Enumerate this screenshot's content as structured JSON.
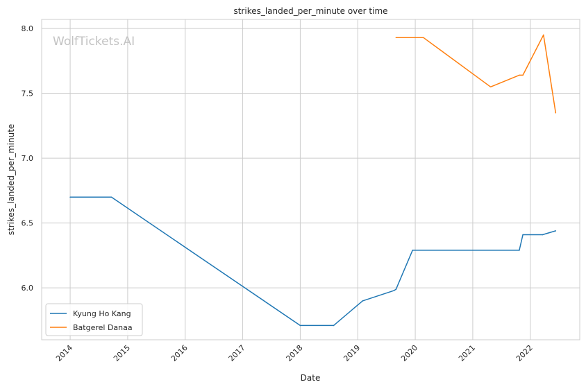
{
  "chart_data": {
    "type": "line",
    "title": "strikes_landed_per_minute over time",
    "xlabel": "Date",
    "ylabel": "strikes_landed_per_minute",
    "watermark": "WolfTickets.AI",
    "x_ticks": [
      "2014",
      "2015",
      "2016",
      "2017",
      "2018",
      "2019",
      "2020",
      "2021",
      "2022"
    ],
    "y_ticks": [
      "6.0",
      "6.5",
      "7.0",
      "7.5",
      "8.0"
    ],
    "ylim": [
      5.6,
      8.07
    ],
    "xlim": [
      "2013-07-04",
      "2022-11-11"
    ],
    "grid": true,
    "legend_position": "lower-left",
    "series": [
      {
        "name": "Kyung Ho Kang",
        "color": "#1f77b4",
        "points": [
          {
            "date": "2014-01-01",
            "value": 6.7
          },
          {
            "date": "2014-09-20",
            "value": 6.7
          },
          {
            "date": "2018-01-01",
            "value": 5.71
          },
          {
            "date": "2018-08-01",
            "value": 5.71
          },
          {
            "date": "2019-02-01",
            "value": 5.9
          },
          {
            "date": "2019-08-20",
            "value": 5.98
          },
          {
            "date": "2019-09-01",
            "value": 5.99
          },
          {
            "date": "2019-12-15",
            "value": 6.29
          },
          {
            "date": "2021-10-23",
            "value": 6.29
          },
          {
            "date": "2021-11-15",
            "value": 6.41
          },
          {
            "date": "2022-03-20",
            "value": 6.41
          },
          {
            "date": "2022-06-11",
            "value": 6.44
          }
        ]
      },
      {
        "name": "Batgerel Danaa",
        "color": "#ff7f0e",
        "points": [
          {
            "date": "2019-09-01",
            "value": 7.93
          },
          {
            "date": "2020-02-22",
            "value": 7.93
          },
          {
            "date": "2021-04-24",
            "value": 7.55
          },
          {
            "date": "2021-10-23",
            "value": 7.64
          },
          {
            "date": "2021-11-15",
            "value": 7.64
          },
          {
            "date": "2022-03-26",
            "value": 7.95
          },
          {
            "date": "2022-06-11",
            "value": 7.35
          }
        ]
      }
    ]
  }
}
